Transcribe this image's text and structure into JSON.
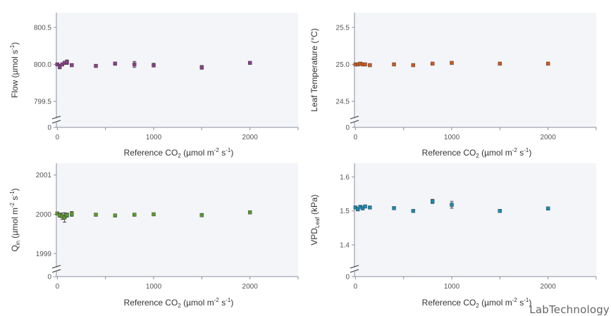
{
  "watermark": "LabTechnology",
  "chart_data": [
    {
      "type": "scatter",
      "ylabel_main": "Flow (µmol s",
      "ylabel_sup": "-1",
      "ylabel_tail": ")",
      "xlabel": {
        "pre": "Reference CO",
        "sub": "2",
        "mid": " (µmol m",
        "sup1": "-2",
        "mid2": " s",
        "sup2": "-1",
        "post": ")"
      },
      "xlim": [
        -10,
        2500
      ],
      "xticks": [
        0,
        1000,
        2000
      ],
      "ylim": [
        799.3,
        800.7
      ],
      "yticks": [
        799.5,
        800.0,
        800.5
      ],
      "ytick_labels": [
        "799.5",
        "800.0",
        "800.5"
      ],
      "axis_break_label": "0",
      "color": "#8a3f8a",
      "x": [
        0,
        25,
        50,
        75,
        100,
        150,
        400,
        600,
        800,
        1000,
        1500,
        2000
      ],
      "y": [
        800.0,
        799.97,
        800.0,
        800.02,
        800.03,
        799.99,
        799.98,
        800.01,
        800.0,
        799.99,
        799.96,
        800.02
      ],
      "err": [
        0.01,
        0.03,
        0.02,
        0.02,
        0.03,
        0.02,
        0.015,
        0.02,
        0.04,
        0.025,
        0.025,
        0.01
      ]
    },
    {
      "type": "scatter",
      "ylabel_main": "Leaf Temperature (°C)",
      "ylabel_sup": "",
      "ylabel_tail": "",
      "xlabel": {
        "pre": "Reference CO",
        "sub": "2",
        "mid": " (µmol m",
        "sup1": "-2",
        "mid2": " s",
        "sup2": "-1",
        "post": ")"
      },
      "xlim": [
        -10,
        2500
      ],
      "xticks": [
        0,
        1000,
        2000
      ],
      "ylim": [
        24.3,
        25.7
      ],
      "yticks": [
        24.5,
        25.0,
        25.5
      ],
      "ytick_labels": [
        "24.5",
        "25.0",
        "25.5"
      ],
      "axis_break_label": "0",
      "color": "#c85a20",
      "x": [
        0,
        25,
        50,
        75,
        100,
        150,
        400,
        600,
        800,
        1000,
        1500,
        2000
      ],
      "y": [
        25.0,
        25.0,
        25.01,
        25.0,
        25.0,
        24.99,
        25.0,
        24.99,
        25.01,
        25.02,
        25.01,
        25.01
      ],
      "err": [
        0.01,
        0.01,
        0.01,
        0.01,
        0.01,
        0.01,
        0.01,
        0.01,
        0.01,
        0.01,
        0.01,
        0.01
      ]
    },
    {
      "type": "scatter",
      "ylabel_main": "Q",
      "ylabel_sub": "in",
      "ylabel_mid": " (µmol m",
      "ylabel_sup": "-2",
      "ylabel_mid2": " s",
      "ylabel_sup2": "-1",
      "ylabel_tail": ")",
      "xlabel": {
        "pre": "Reference CO",
        "sub": "2",
        "mid": " (µmol m",
        "sup1": "-2",
        "mid2": " s",
        "sup2": "-1",
        "post": ")"
      },
      "xlim": [
        -10,
        2500
      ],
      "xticks": [
        0,
        1000,
        2000
      ],
      "ylim": [
        1998.7,
        2001.3
      ],
      "yticks": [
        1999,
        2000,
        2001
      ],
      "ytick_labels": [
        "1999",
        "2000",
        "2001"
      ],
      "axis_break_label": "0",
      "color": "#5a9a2a",
      "x": [
        0,
        25,
        50,
        75,
        100,
        150,
        400,
        600,
        800,
        1000,
        1500,
        2000
      ],
      "y": [
        2000.02,
        1999.98,
        1999.95,
        1999.92,
        1999.98,
        2000.01,
        1999.99,
        1999.97,
        1999.99,
        2000.0,
        1999.98,
        2000.05
      ],
      "err": [
        0.03,
        0.05,
        0.08,
        0.12,
        0.05,
        0.06,
        0.03,
        0.03,
        0.03,
        0.03,
        0.04,
        0.03
      ]
    },
    {
      "type": "scatter",
      "ylabel_main": "VPD",
      "ylabel_sub": "Leaf",
      "ylabel_tail": " (kPa)",
      "xlabel": {
        "pre": "Reference CO",
        "sub": "2",
        "mid": " (µmol m",
        "sup1": "-2",
        "mid2": " s",
        "sup2": "-1",
        "post": ")"
      },
      "xlim": [
        -10,
        2500
      ],
      "xticks": [
        0,
        1000,
        2000
      ],
      "ylim": [
        1.34,
        1.64
      ],
      "yticks": [
        1.4,
        1.5,
        1.6
      ],
      "ytick_labels": [
        "1.4",
        "1.5",
        "1.6"
      ],
      "axis_break_label": "0",
      "color": "#1a8ab0",
      "x": [
        0,
        25,
        50,
        75,
        100,
        150,
        400,
        600,
        800,
        1000,
        1500,
        2000
      ],
      "y": [
        1.51,
        1.505,
        1.512,
        1.508,
        1.513,
        1.51,
        1.508,
        1.5,
        1.528,
        1.518,
        1.5,
        1.507
      ],
      "err": [
        0.003,
        0.005,
        0.004,
        0.005,
        0.003,
        0.003,
        0.004,
        0.003,
        0.006,
        0.01,
        0.003,
        0.004
      ]
    }
  ]
}
